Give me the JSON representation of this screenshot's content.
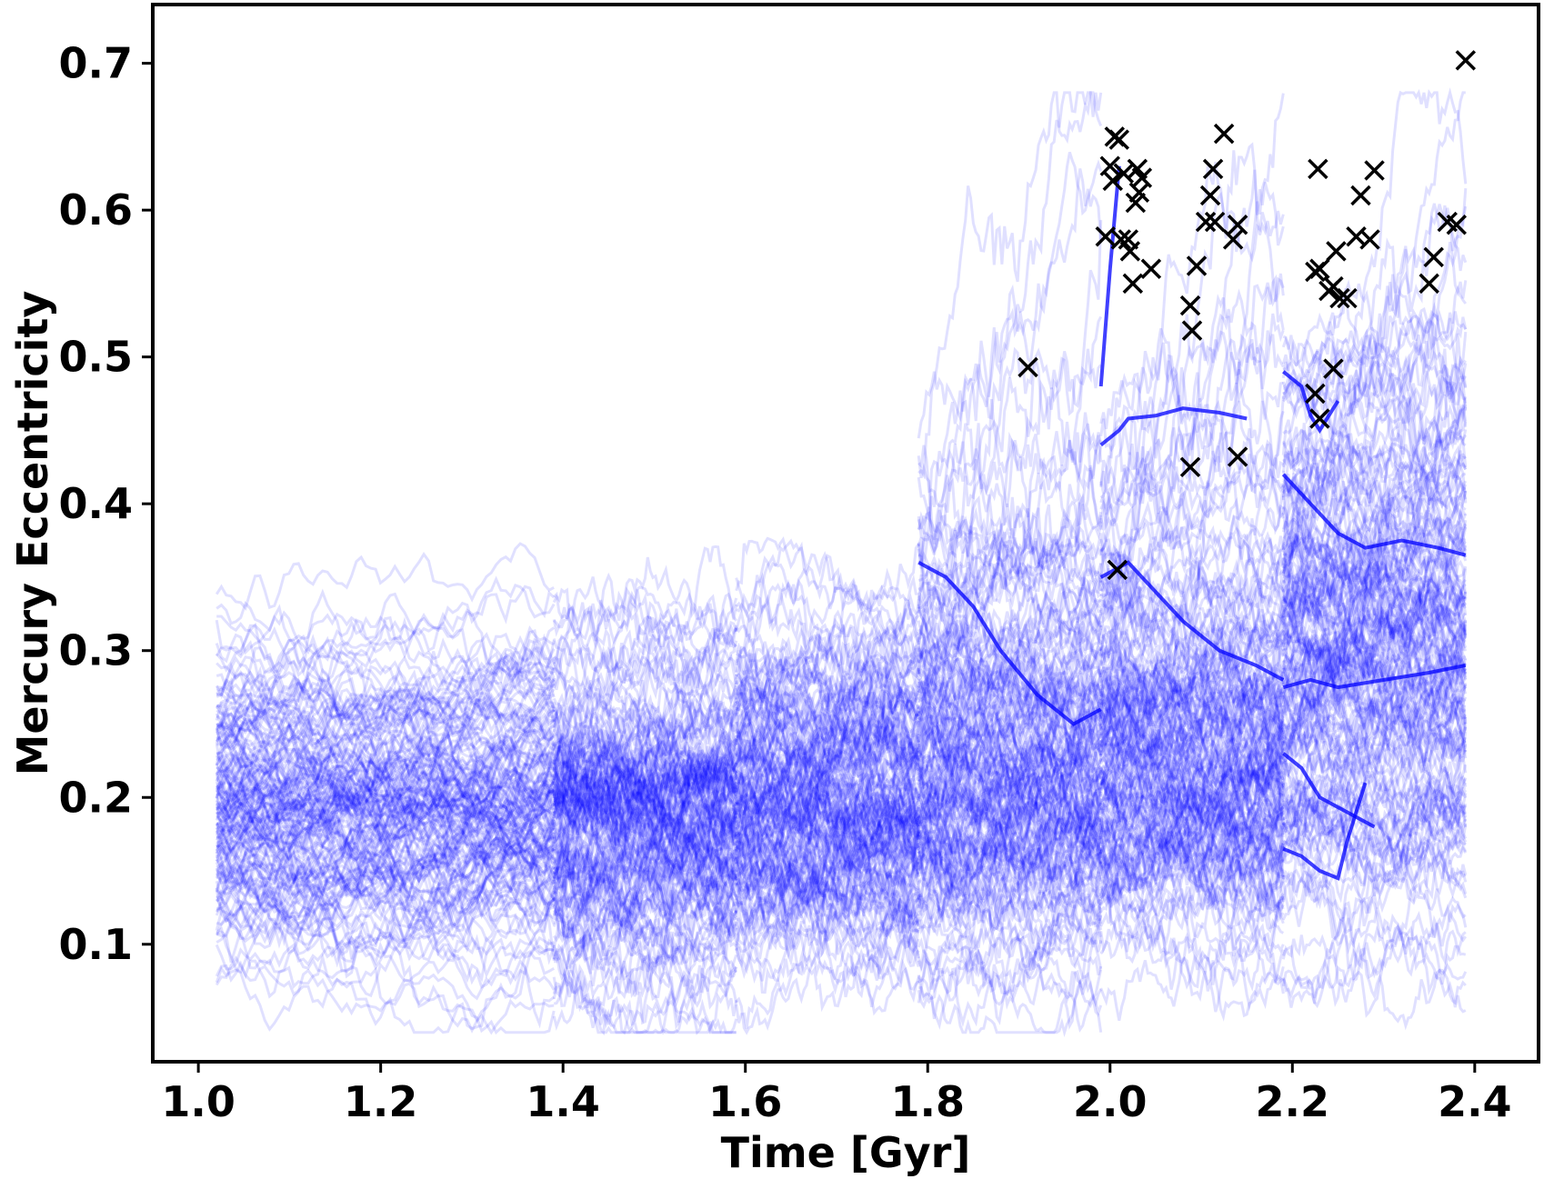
{
  "chart_data": {
    "type": "line",
    "title": "",
    "xlabel": "Time [Gyr]",
    "ylabel": "Mercury Eccentricity",
    "xlim": [
      0.95,
      2.47
    ],
    "ylim": [
      0.02,
      0.74
    ],
    "xticks": [
      {
        "value": 1.0,
        "label": "1.0"
      },
      {
        "value": 1.2,
        "label": "1.2"
      },
      {
        "value": 1.4,
        "label": "1.4"
      },
      {
        "value": 1.6,
        "label": "1.6"
      },
      {
        "value": 1.8,
        "label": "1.8"
      },
      {
        "value": 2.0,
        "label": "2.0"
      },
      {
        "value": 2.2,
        "label": "2.2"
      },
      {
        "value": 2.4,
        "label": "2.4"
      }
    ],
    "yticks": [
      {
        "value": 0.1,
        "label": "0.1"
      },
      {
        "value": 0.2,
        "label": "0.2"
      },
      {
        "value": 0.3,
        "label": "0.3"
      },
      {
        "value": 0.4,
        "label": "0.4"
      },
      {
        "value": 0.5,
        "label": "0.5"
      },
      {
        "value": 0.6,
        "label": "0.6"
      },
      {
        "value": 0.7,
        "label": "0.7"
      }
    ],
    "grid": false,
    "legend": "none",
    "line_color": "#0000ff",
    "marker_color": "#000000",
    "segments": [
      {
        "start": 1.02,
        "end": 1.39,
        "center": 0.19,
        "spread": 0.055,
        "min": 0.07,
        "max": 0.39
      },
      {
        "start": 1.39,
        "end": 1.59,
        "center": 0.19,
        "spread": 0.055,
        "min": 0.065,
        "max": 0.36
      },
      {
        "start": 1.59,
        "end": 1.79,
        "center": 0.195,
        "spread": 0.058,
        "min": 0.06,
        "max": 0.4
      },
      {
        "start": 1.79,
        "end": 1.99,
        "center": 0.21,
        "spread": 0.062,
        "min": 0.06,
        "max": 0.39
      },
      {
        "start": 1.99,
        "end": 2.19,
        "center": 0.235,
        "spread": 0.068,
        "min": 0.06,
        "max": 0.4
      },
      {
        "start": 2.19,
        "end": 2.39,
        "center": 0.3,
        "spread": 0.1,
        "min": 0.08,
        "max": 0.5
      }
    ],
    "highlight_tracks": [
      {
        "x": [
          1.99,
          2.01,
          2.02,
          2.05,
          2.08,
          2.12,
          2.15
        ],
        "y": [
          0.44,
          0.45,
          0.458,
          0.46,
          0.465,
          0.462,
          0.458
        ]
      },
      {
        "x": [
          1.99,
          2.0,
          2.01
        ],
        "y": [
          0.48,
          0.56,
          0.63
        ]
      },
      {
        "x": [
          2.19,
          2.21,
          2.22,
          2.23,
          2.25
        ],
        "y": [
          0.49,
          0.48,
          0.46,
          0.45,
          0.47
        ]
      },
      {
        "x": [
          2.19,
          2.22,
          2.25,
          2.28,
          2.32,
          2.36,
          2.39
        ],
        "y": [
          0.42,
          0.4,
          0.38,
          0.37,
          0.375,
          0.37,
          0.365
        ]
      },
      {
        "x": [
          2.19,
          2.22,
          2.25,
          2.3,
          2.35,
          2.39
        ],
        "y": [
          0.275,
          0.28,
          0.275,
          0.28,
          0.285,
          0.29
        ]
      },
      {
        "x": [
          2.19,
          2.21,
          2.23,
          2.25,
          2.26,
          2.28
        ],
        "y": [
          0.165,
          0.16,
          0.15,
          0.145,
          0.17,
          0.21
        ]
      },
      {
        "x": [
          2.19,
          2.21,
          2.23,
          2.26,
          2.29
        ],
        "y": [
          0.23,
          0.22,
          0.2,
          0.19,
          0.18
        ]
      },
      {
        "x": [
          1.79,
          1.82,
          1.85,
          1.88,
          1.92,
          1.96,
          1.99
        ],
        "y": [
          0.36,
          0.35,
          0.33,
          0.3,
          0.27,
          0.25,
          0.26
        ]
      },
      {
        "x": [
          1.99,
          2.02,
          2.05,
          2.08,
          2.12,
          2.16,
          2.19
        ],
        "y": [
          0.35,
          0.36,
          0.34,
          0.32,
          0.3,
          0.29,
          0.28
        ]
      }
    ],
    "markers": [
      {
        "x": 1.91,
        "y": 0.493
      },
      {
        "x": 1.995,
        "y": 0.582
      },
      {
        "x": 2.0,
        "y": 0.63
      },
      {
        "x": 2.003,
        "y": 0.62
      },
      {
        "x": 2.005,
        "y": 0.65
      },
      {
        "x": 2.01,
        "y": 0.648
      },
      {
        "x": 2.012,
        "y": 0.58
      },
      {
        "x": 2.015,
        "y": 0.625
      },
      {
        "x": 2.02,
        "y": 0.58
      },
      {
        "x": 2.022,
        "y": 0.572
      },
      {
        "x": 2.025,
        "y": 0.55
      },
      {
        "x": 2.028,
        "y": 0.605
      },
      {
        "x": 2.03,
        "y": 0.628
      },
      {
        "x": 2.032,
        "y": 0.612
      },
      {
        "x": 2.035,
        "y": 0.622
      },
      {
        "x": 2.045,
        "y": 0.56
      },
      {
        "x": 2.008,
        "y": 0.355
      },
      {
        "x": 2.088,
        "y": 0.535
      },
      {
        "x": 2.09,
        "y": 0.518
      },
      {
        "x": 2.095,
        "y": 0.562
      },
      {
        "x": 2.088,
        "y": 0.425
      },
      {
        "x": 2.105,
        "y": 0.592
      },
      {
        "x": 2.11,
        "y": 0.61
      },
      {
        "x": 2.115,
        "y": 0.592
      },
      {
        "x": 2.113,
        "y": 0.628
      },
      {
        "x": 2.125,
        "y": 0.652
      },
      {
        "x": 2.135,
        "y": 0.58
      },
      {
        "x": 2.14,
        "y": 0.59
      },
      {
        "x": 2.14,
        "y": 0.432
      },
      {
        "x": 2.225,
        "y": 0.558
      },
      {
        "x": 2.228,
        "y": 0.628
      },
      {
        "x": 2.23,
        "y": 0.56
      },
      {
        "x": 2.225,
        "y": 0.475
      },
      {
        "x": 2.23,
        "y": 0.458
      },
      {
        "x": 2.24,
        "y": 0.545
      },
      {
        "x": 2.245,
        "y": 0.548
      },
      {
        "x": 2.248,
        "y": 0.572
      },
      {
        "x": 2.252,
        "y": 0.54
      },
      {
        "x": 2.26,
        "y": 0.54
      },
      {
        "x": 2.245,
        "y": 0.492
      },
      {
        "x": 2.27,
        "y": 0.582
      },
      {
        "x": 2.275,
        "y": 0.61
      },
      {
        "x": 2.285,
        "y": 0.58
      },
      {
        "x": 2.29,
        "y": 0.627
      },
      {
        "x": 2.35,
        "y": 0.55
      },
      {
        "x": 2.355,
        "y": 0.568
      },
      {
        "x": 2.37,
        "y": 0.592
      },
      {
        "x": 2.38,
        "y": 0.59
      },
      {
        "x": 2.39,
        "y": 0.702
      }
    ]
  }
}
